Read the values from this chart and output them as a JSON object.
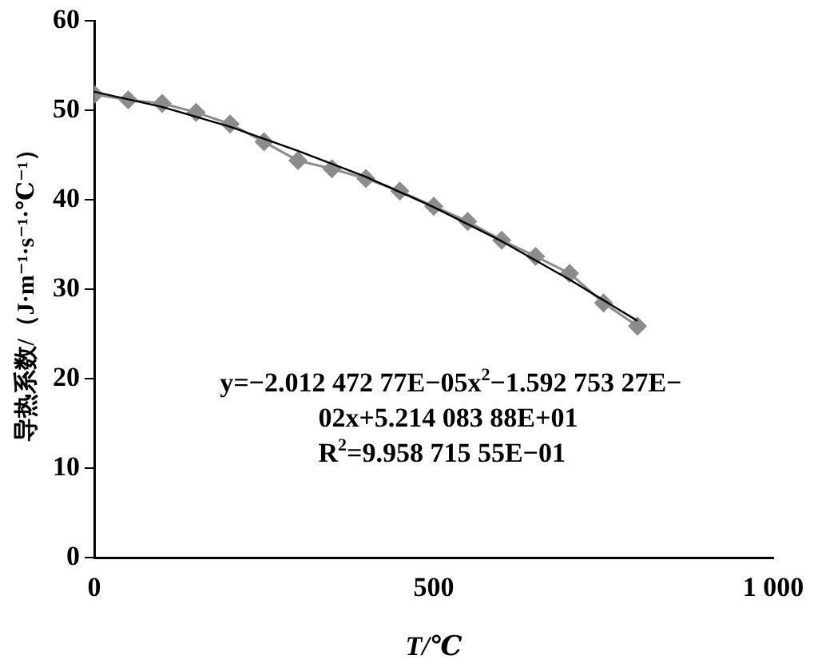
{
  "chart_data": {
    "type": "line",
    "xlabel": "T/℃",
    "ylabel": "导热系数/（J·m⁻¹·s⁻¹·℃⁻¹）",
    "xlim": [
      0,
      1000
    ],
    "xticks": [
      0,
      500,
      {
        "value": 1000,
        "label": "1 000"
      }
    ],
    "ylim": [
      0,
      60
    ],
    "yticks": [
      0,
      10,
      20,
      30,
      40,
      50,
      60
    ],
    "grid": false,
    "legend": false,
    "series": [
      {
        "color": "#8c8c8c",
        "marker": "diamond",
        "x": [
          0,
          50,
          100,
          150,
          200,
          250,
          300,
          350,
          400,
          450,
          500,
          550,
          600,
          650,
          700,
          750,
          800
        ],
        "values": [
          51.8,
          51.2,
          50.8,
          49.8,
          48.5,
          46.5,
          44.4,
          43.5,
          42.4,
          41.0,
          39.3,
          37.6,
          35.5,
          33.7,
          31.8,
          28.5,
          25.9
        ]
      },
      {
        "color": "#000000",
        "marker": "none",
        "x": [
          0,
          100,
          200,
          300,
          400,
          500,
          600,
          700,
          800
        ],
        "values": [
          52.1,
          50.4,
          48.2,
          45.5,
          42.6,
          39.2,
          35.4,
          31.1,
          26.5
        ]
      }
    ],
    "annotations": [
      "y=−2.012 472 77E−05x$^{2}$−1.592 753 27E−",
      "02x+5.214 083 88E+01",
      "R$^{2}$=9.958 715 55E−01"
    ]
  }
}
